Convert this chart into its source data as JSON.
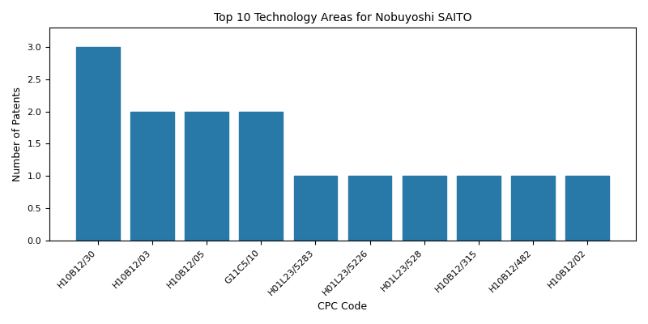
{
  "title": "Top 10 Technology Areas for Nobuyoshi SAITO",
  "xlabel": "CPC Code",
  "ylabel": "Number of Patents",
  "categories": [
    "H10B12/30",
    "H10B12/03",
    "H10B12/05",
    "G11C5/10",
    "H01L23/5283",
    "H01L23/5226",
    "H01L23/528",
    "H10B12/315",
    "H10B12/482",
    "H10B12/02"
  ],
  "values": [
    3,
    2,
    2,
    2,
    1,
    1,
    1,
    1,
    1,
    1
  ],
  "bar_color": "#2878a8",
  "figsize": [
    8.0,
    4.0
  ],
  "dpi": 100,
  "ylim": [
    0,
    3.3
  ],
  "yticks": [
    0.0,
    0.5,
    1.0,
    1.5,
    2.0,
    2.5,
    3.0
  ],
  "title_fontsize": 10,
  "axis_label_fontsize": 9,
  "tick_fontsize": 8,
  "xtick_rotation": 45
}
